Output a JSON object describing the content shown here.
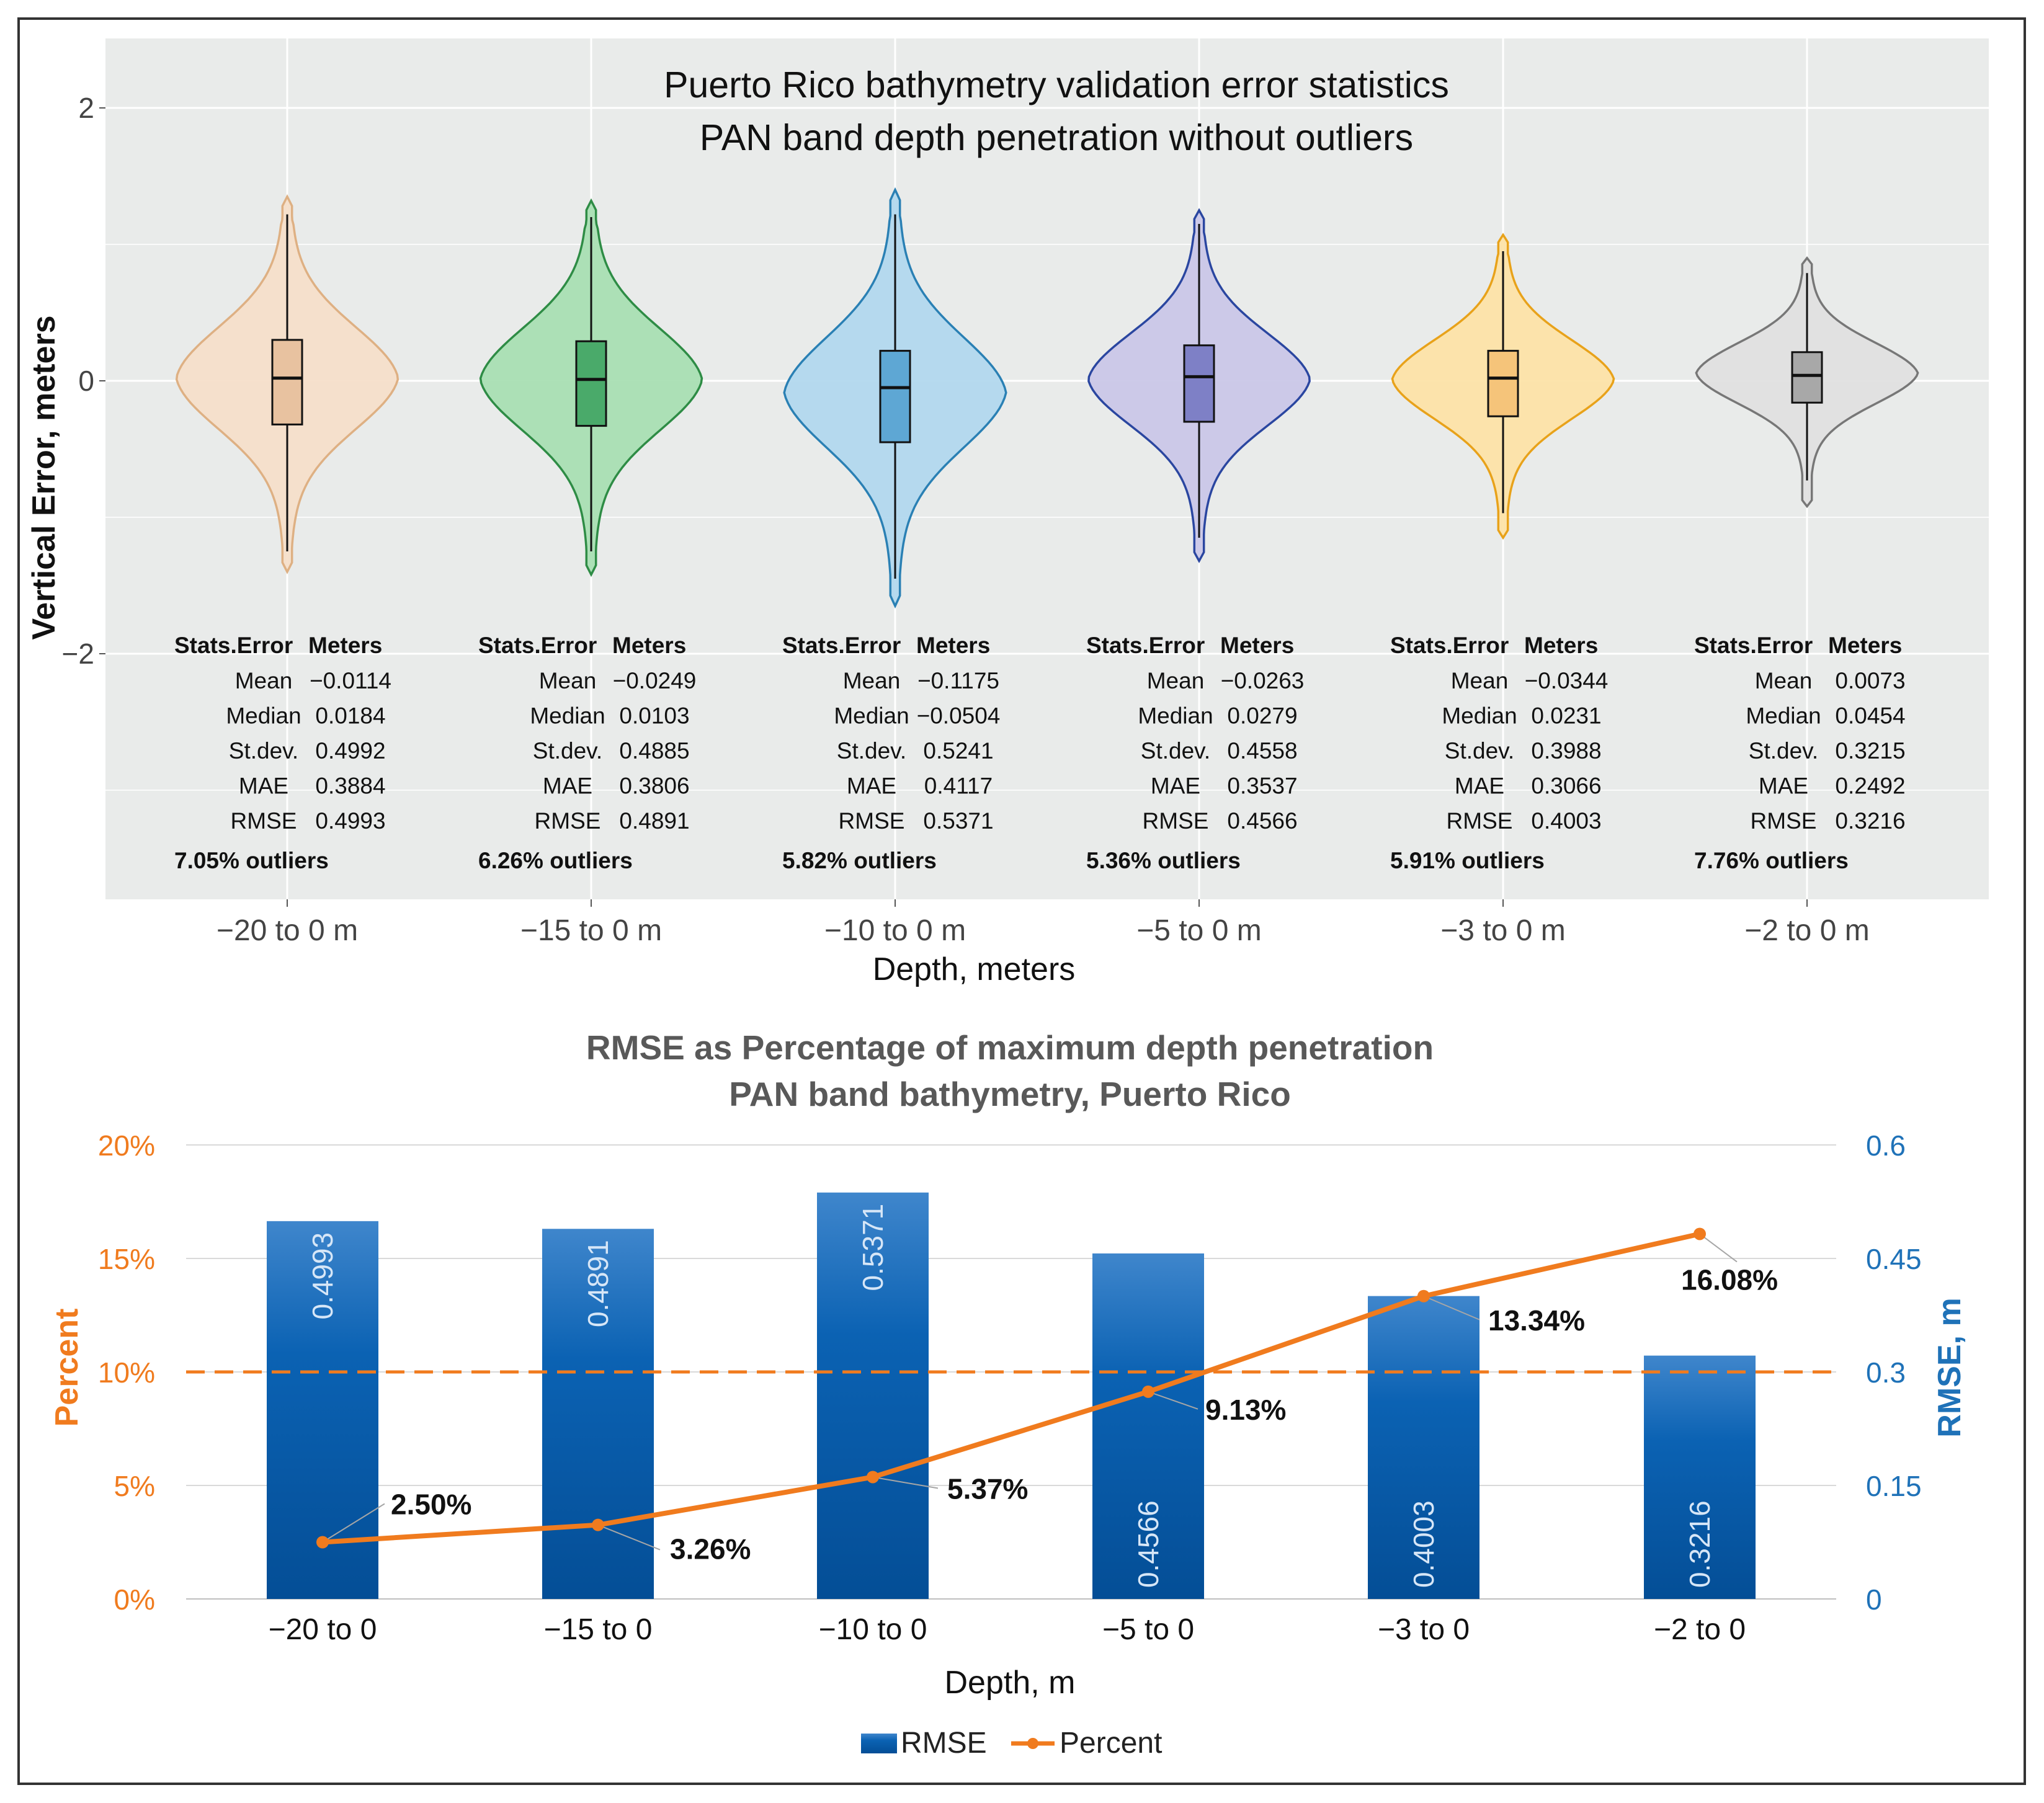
{
  "colors": {
    "panel_bg": "#e9ebea",
    "grid": "#ffffff",
    "orange": "#f07b1e",
    "blue": "#0a62b4",
    "blue_axis": "#1f72b8",
    "axis_text": "#4d4d4d"
  },
  "chart_data": [
    {
      "type": "violin",
      "title": "Puerto Rico bathymetry validation error statistics",
      "subtitle": "PAN band depth penetration without outliers",
      "xlabel": "Depth, meters",
      "ylabel": "Vertical Error, meters",
      "ylim": [
        -3.8,
        2.5
      ],
      "y_ticks": [
        {
          "value": 2,
          "label": "2"
        },
        {
          "value": 0,
          "label": "0"
        },
        {
          "value": -2,
          "label": "−2"
        }
      ],
      "table_header": [
        "Stats.Error",
        "Meters"
      ],
      "stat_labels": [
        "Mean",
        "Median",
        "St.dev.",
        "MAE",
        "RMSE"
      ],
      "groups": [
        {
          "label": "−20 to 0 m",
          "fill": "#f5dfca",
          "stroke": "#deb083",
          "box_fill": "#e8c2a0",
          "whisker": [
            -1.25,
            1.22
          ],
          "q1": -0.32,
          "median": 0.02,
          "q3": 0.3,
          "range": [
            -1.4,
            1.35
          ],
          "stats": [
            "−0.0114",
            "0.0184",
            "0.4992",
            "0.3884",
            "0.4993"
          ],
          "outliers": "7.05% outliers"
        },
        {
          "label": "−15 to 0 m",
          "fill": "#a9dfb3",
          "stroke": "#2e8c45",
          "box_fill": "#4aaa6a",
          "whisker": [
            -1.25,
            1.2
          ],
          "q1": -0.33,
          "median": 0.01,
          "q3": 0.29,
          "range": [
            -1.42,
            1.32
          ],
          "stats": [
            "−0.0249",
            "0.0103",
            "0.4885",
            "0.3806",
            "0.4891"
          ],
          "outliers": "6.26% outliers"
        },
        {
          "label": "−10 to 0 m",
          "fill": "#b2d8ee",
          "stroke": "#2a80b4",
          "box_fill": "#5ea7d4",
          "whisker": [
            -1.45,
            1.22
          ],
          "q1": -0.45,
          "median": -0.05,
          "q3": 0.22,
          "range": [
            -1.65,
            1.4
          ],
          "stats": [
            "−0.1175",
            "−0.0504",
            "0.5241",
            "0.4117",
            "0.5371"
          ],
          "outliers": "5.82% outliers"
        },
        {
          "label": "−5 to 0 m",
          "fill": "#cac7e8",
          "stroke": "#2a46a0",
          "box_fill": "#7e80c6",
          "whisker": [
            -1.15,
            1.15
          ],
          "q1": -0.3,
          "median": 0.03,
          "q3": 0.26,
          "range": [
            -1.32,
            1.25
          ],
          "stats": [
            "−0.0263",
            "0.0279",
            "0.4558",
            "0.3537",
            "0.4566"
          ],
          "outliers": "5.36% outliers"
        },
        {
          "label": "−3 to 0 m",
          "fill": "#fde3a8",
          "stroke": "#e8a21a",
          "box_fill": "#f5c47a",
          "whisker": [
            -0.97,
            0.95
          ],
          "q1": -0.26,
          "median": 0.02,
          "q3": 0.22,
          "range": [
            -1.15,
            1.07
          ],
          "stats": [
            "−0.0344",
            "0.0231",
            "0.3988",
            "0.3066",
            "0.4003"
          ],
          "outliers": "5.91% outliers"
        },
        {
          "label": "−2 to 0 m",
          "fill": "#e0e0e0",
          "stroke": "#777777",
          "box_fill": "#a8a8a8",
          "whisker": [
            -0.73,
            0.79
          ],
          "q1": -0.16,
          "median": 0.04,
          "q3": 0.21,
          "range": [
            -0.92,
            0.9
          ],
          "stats": [
            "0.0073",
            "0.0454",
            "0.3215",
            "0.2492",
            "0.3216"
          ],
          "outliers": "7.76% outliers"
        }
      ]
    },
    {
      "type": "bar+line",
      "title": "RMSE as Percentage of maximum depth penetration",
      "subtitle": "PAN band bathymetry, Puerto Rico",
      "xlabel": "Depth, m",
      "ylabel_left": "Percent",
      "ylabel_right": "RMSE, m",
      "categories": [
        "−20 to 0",
        "−15 to 0",
        "−10 to 0",
        "−5 to 0",
        "−3 to 0",
        "−2 to 0"
      ],
      "left_axis": {
        "ylim": [
          0,
          20
        ],
        "ticks": [
          "0%",
          "5%",
          "10%",
          "15%",
          "20%"
        ]
      },
      "right_axis": {
        "ylim": [
          0,
          0.6
        ],
        "ticks": [
          "0",
          "0.15",
          "0.3",
          "0.45",
          "0.6"
        ]
      },
      "reference_line_percent": 10,
      "series": [
        {
          "name": "RMSE",
          "type": "bar",
          "axis": "right",
          "values": [
            0.4993,
            0.4891,
            0.5371,
            0.4566,
            0.4003,
            0.3216
          ],
          "labels": [
            "0.4993",
            "0.4891",
            "0.5371",
            "0.4566",
            "0.4003",
            "0.3216"
          ],
          "label_pos": [
            "top",
            "top",
            "top",
            "bottom",
            "bottom",
            "bottom"
          ]
        },
        {
          "name": "Percent",
          "type": "line",
          "axis": "left",
          "values": [
            2.5,
            3.26,
            5.37,
            9.13,
            13.34,
            16.08
          ],
          "labels": [
            "2.50%",
            "3.26%",
            "5.37%",
            "9.13%",
            "13.34%",
            "16.08%"
          ]
        }
      ],
      "legend": [
        "RMSE",
        "Percent"
      ]
    }
  ]
}
